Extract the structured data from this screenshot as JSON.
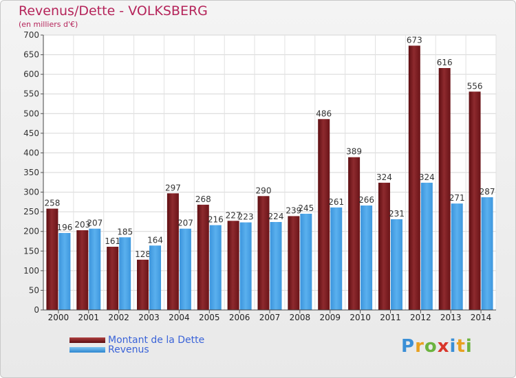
{
  "title": "Revenus/Dette - VOLKSBERG",
  "subtitle": "(en milliers d'€)",
  "legend": {
    "debt_label": "Montant de la Dette",
    "revenue_label": "Revenus"
  },
  "logo": {
    "letters": [
      "P",
      "r",
      "o",
      "x",
      "i",
      "t",
      "i"
    ],
    "colors": [
      "#3a8fd6",
      "#e8a020",
      "#6cb33f",
      "#d9362b",
      "#3a8fd6",
      "#e8a020",
      "#6cb33f"
    ]
  },
  "colors": {
    "debt": "#7a1a1c",
    "revenue": "#4aa3e6",
    "label": "#333333",
    "title": "#b5245a"
  },
  "chart_data": {
    "type": "bar",
    "title": "Revenus/Dette - VOLKSBERG",
    "subtitle": "(en milliers d'€)",
    "xlabel": "",
    "ylabel": "",
    "ylim": [
      0,
      700
    ],
    "yticks": [
      0,
      50,
      100,
      150,
      200,
      250,
      300,
      350,
      400,
      450,
      500,
      550,
      600,
      650,
      700
    ],
    "grid": true,
    "legend_position": "bottom-left",
    "categories": [
      "2000",
      "2001",
      "2002",
      "2003",
      "2004",
      "2005",
      "2006",
      "2007",
      "2008",
      "2009",
      "2010",
      "2011",
      "2012",
      "2013",
      "2014"
    ],
    "series": [
      {
        "name": "Montant de la Dette",
        "values": [
          258,
          203,
          161,
          128,
          297,
          268,
          227,
          290,
          239,
          486,
          389,
          324,
          673,
          616,
          556
        ]
      },
      {
        "name": "Revenus",
        "values": [
          196,
          207,
          185,
          164,
          207,
          216,
          223,
          224,
          245,
          261,
          266,
          231,
          324,
          271,
          287
        ]
      }
    ]
  }
}
